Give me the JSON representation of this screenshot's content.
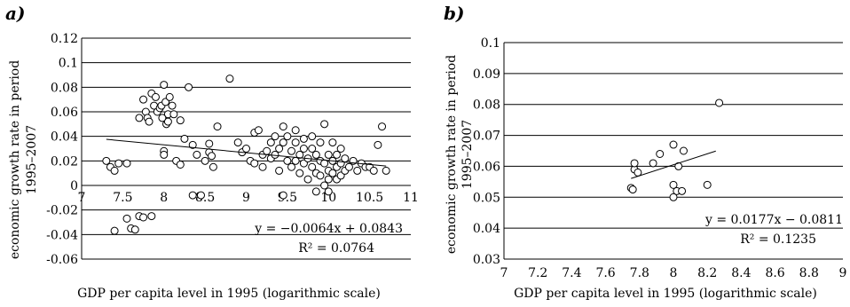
{
  "chart_data": [
    {
      "type": "scatter",
      "panel_label": "a)",
      "title": "",
      "xlabel": "GDP per capita level in 1995 (logarithmic scale)",
      "ylabel": [
        "economic growth rate in period",
        "1995–2007"
      ],
      "xlim": [
        7,
        11
      ],
      "ylim": [
        -0.06,
        0.12
      ],
      "xticks": [
        "7",
        "7.5",
        "8",
        "8.5",
        "9",
        "9.5",
        "10",
        "10.5",
        "11"
      ],
      "yticks": [
        "-0.06",
        "-0.04",
        "-0.02",
        "0",
        "0.02",
        "0.04",
        "0.06",
        "0.08",
        "0.1",
        "0.12"
      ],
      "grid": true,
      "equation": "y = −0.0064x + 0.0843",
      "r2": "R² = 0.0764",
      "trendline": {
        "slope": -0.0064,
        "intercept": 0.0843,
        "x": [
          7.3,
          10.7
        ]
      },
      "points": [
        [
          7.3,
          0.02
        ],
        [
          7.35,
          0.015
        ],
        [
          7.4,
          0.012
        ],
        [
          7.45,
          0.018
        ],
        [
          7.55,
          0.018
        ],
        [
          7.4,
          -0.037
        ],
        [
          7.55,
          -0.027
        ],
        [
          7.6,
          -0.035
        ],
        [
          7.65,
          -0.036
        ],
        [
          7.7,
          -0.025
        ],
        [
          7.75,
          -0.026
        ],
        [
          7.85,
          -0.025
        ],
        [
          7.7,
          0.055
        ],
        [
          7.75,
          0.07
        ],
        [
          7.78,
          0.06
        ],
        [
          7.8,
          0.055
        ],
        [
          7.82,
          0.052
        ],
        [
          7.85,
          0.075
        ],
        [
          7.88,
          0.065
        ],
        [
          7.9,
          0.072
        ],
        [
          7.92,
          0.06
        ],
        [
          7.95,
          0.063
        ],
        [
          7.97,
          0.065
        ],
        [
          8.0,
          0.082
        ],
        [
          8.02,
          0.068
        ],
        [
          8.03,
          0.05
        ],
        [
          8.05,
          0.058
        ],
        [
          8.07,
          0.072
        ],
        [
          8.1,
          0.065
        ],
        [
          8.05,
          0.052
        ],
        [
          7.98,
          0.055
        ],
        [
          8.12,
          0.058
        ],
        [
          8.0,
          0.028
        ],
        [
          8.0,
          0.025
        ],
        [
          8.15,
          0.02
        ],
        [
          8.2,
          0.017
        ],
        [
          8.25,
          0.038
        ],
        [
          8.3,
          0.08
        ],
        [
          8.2,
          0.053
        ],
        [
          8.35,
          0.033
        ],
        [
          8.4,
          0.025
        ],
        [
          8.5,
          0.02
        ],
        [
          8.55,
          0.027
        ],
        [
          8.58,
          0.024
        ],
        [
          8.6,
          0.015
        ],
        [
          8.55,
          0.034
        ],
        [
          8.65,
          0.048
        ],
        [
          8.8,
          0.087
        ],
        [
          8.35,
          -0.008
        ],
        [
          8.45,
          -0.008
        ],
        [
          8.9,
          0.035
        ],
        [
          8.95,
          0.027
        ],
        [
          9.0,
          0.03
        ],
        [
          9.05,
          0.02
        ],
        [
          9.1,
          0.018
        ],
        [
          9.1,
          0.043
        ],
        [
          9.15,
          0.045
        ],
        [
          9.2,
          0.025
        ],
        [
          9.2,
          0.015
        ],
        [
          9.25,
          0.028
        ],
        [
          9.3,
          0.035
        ],
        [
          9.3,
          0.022
        ],
        [
          9.35,
          0.04
        ],
        [
          9.35,
          0.025
        ],
        [
          9.4,
          0.03
        ],
        [
          9.4,
          0.012
        ],
        [
          9.45,
          0.048
        ],
        [
          9.45,
          0.035
        ],
        [
          9.45,
          -0.008
        ],
        [
          9.5,
          0.02
        ],
        [
          9.5,
          0.04
        ],
        [
          9.55,
          0.028
        ],
        [
          9.55,
          0.015
        ],
        [
          9.6,
          0.035
        ],
        [
          9.6,
          0.02
        ],
        [
          9.6,
          0.045
        ],
        [
          9.65,
          0.025
        ],
        [
          9.65,
          0.01
        ],
        [
          9.7,
          0.03
        ],
        [
          9.7,
          0.018
        ],
        [
          9.7,
          0.038
        ],
        [
          9.75,
          0.022
        ],
        [
          9.75,
          0.005
        ],
        [
          9.8,
          0.03
        ],
        [
          9.8,
          0.015
        ],
        [
          9.8,
          0.04
        ],
        [
          9.85,
          0.025
        ],
        [
          9.85,
          0.01
        ],
        [
          9.85,
          -0.005
        ],
        [
          9.9,
          0.02
        ],
        [
          9.9,
          0.035
        ],
        [
          9.9,
          0.008
        ],
        [
          9.95,
          0.018
        ],
        [
          9.95,
          0.05
        ],
        [
          9.95,
          0.0
        ],
        [
          10.0,
          0.025
        ],
        [
          10.0,
          0.012
        ],
        [
          10.0,
          0.005
        ],
        [
          10.0,
          -0.005
        ],
        [
          10.05,
          0.02
        ],
        [
          10.05,
          0.035
        ],
        [
          10.05,
          0.01
        ],
        [
          10.1,
          0.015
        ],
        [
          10.1,
          0.025
        ],
        [
          10.1,
          0.005
        ],
        [
          10.15,
          0.018
        ],
        [
          10.15,
          0.03
        ],
        [
          10.15,
          0.008
        ],
        [
          10.2,
          0.012
        ],
        [
          10.2,
          0.022
        ],
        [
          10.25,
          0.015
        ],
        [
          10.3,
          0.02
        ],
        [
          10.35,
          0.012
        ],
        [
          10.4,
          0.018
        ],
        [
          10.45,
          0.015
        ],
        [
          10.5,
          0.015
        ],
        [
          10.55,
          0.012
        ],
        [
          10.6,
          0.033
        ],
        [
          10.65,
          0.048
        ],
        [
          10.7,
          0.012
        ]
      ]
    },
    {
      "type": "scatter",
      "panel_label": "b)",
      "title": "",
      "xlabel": "GDP per capita level in 1995 (logarithmic scale)",
      "ylabel": [
        "economic growth rate in period",
        "1995–2007"
      ],
      "xlim": [
        7,
        9
      ],
      "ylim": [
        0.03,
        0.1
      ],
      "xticks": [
        "7",
        "7.2",
        "7.4",
        "7.6",
        "7.8",
        "8",
        "8.2",
        "8.4",
        "8.6",
        "8.8",
        "9"
      ],
      "yticks": [
        "0.03",
        "0.04",
        "0.05",
        "0.06",
        "0.07",
        "0.08",
        "0.09",
        "0.1"
      ],
      "grid": true,
      "equation": "y = 0.0177x − 0.0811",
      "r2": "R² = 0.1235",
      "trendline": {
        "slope": 0.0177,
        "intercept": -0.0811,
        "x": [
          7.75,
          8.25
        ]
      },
      "points": [
        [
          7.75,
          0.053
        ],
        [
          7.76,
          0.0525
        ],
        [
          7.77,
          0.059
        ],
        [
          7.77,
          0.061
        ],
        [
          7.79,
          0.058
        ],
        [
          7.88,
          0.061
        ],
        [
          7.92,
          0.064
        ],
        [
          8.0,
          0.05
        ],
        [
          8.0,
          0.054
        ],
        [
          8.0,
          0.067
        ],
        [
          8.02,
          0.052
        ],
        [
          8.03,
          0.06
        ],
        [
          8.05,
          0.052
        ],
        [
          8.06,
          0.065
        ],
        [
          8.2,
          0.054
        ],
        [
          8.27,
          0.0805
        ]
      ]
    }
  ]
}
